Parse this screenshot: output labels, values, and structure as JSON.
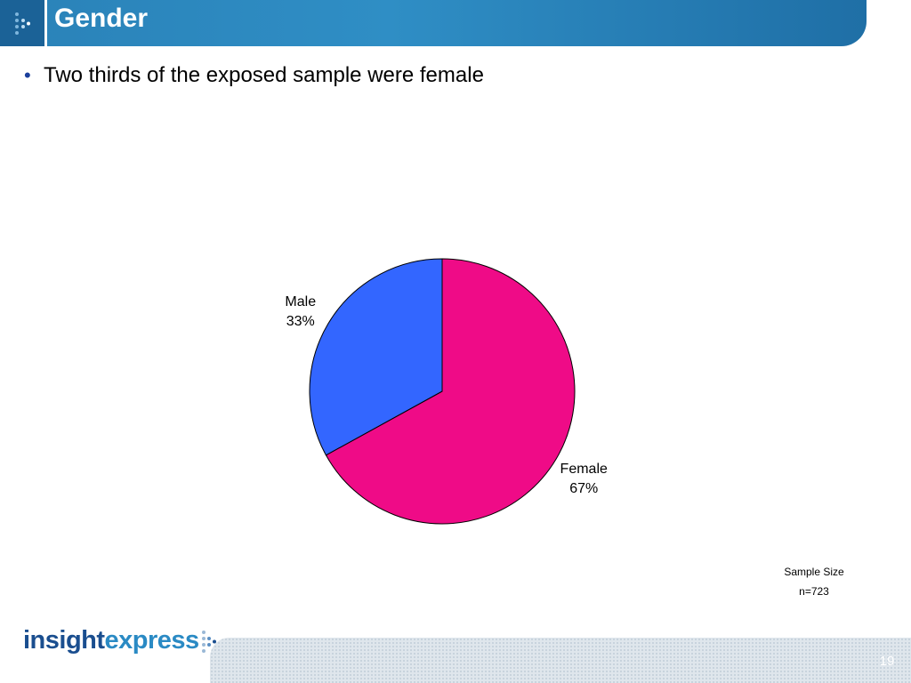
{
  "header": {
    "title": "Gender"
  },
  "bullets": [
    "Two thirds of the exposed sample were female"
  ],
  "chart_data": {
    "type": "pie",
    "title": "",
    "slices": [
      {
        "label": "Female",
        "value": 67,
        "display": "67%",
        "color": "#ef0b87"
      },
      {
        "label": "Male",
        "value": 33,
        "display": "33%",
        "color": "#3366ff"
      }
    ],
    "start": "12 o'clock",
    "direction": "clockwise",
    "legend": "none",
    "labels": "outside slices"
  },
  "sample": {
    "label": "Sample Size",
    "value": "n=723"
  },
  "footer": {
    "logo_part1": "insight",
    "logo_part2": "express",
    "page_number": "19"
  }
}
